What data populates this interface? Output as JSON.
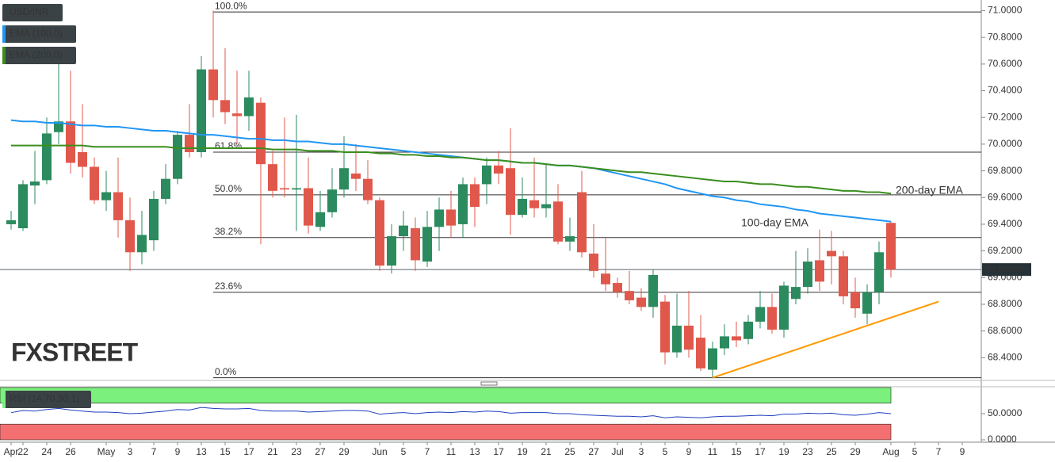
{
  "chart_data": {
    "type": "candlestick",
    "title": "USD/INR",
    "categories": [
      "Apr",
      "22",
      null,
      "24",
      null,
      "26",
      null,
      null,
      "May",
      null,
      "3",
      null,
      "7",
      null,
      "9",
      null,
      "13",
      null,
      "15",
      null,
      "17",
      null,
      "21",
      null,
      "23",
      null,
      "27",
      null,
      "29",
      null,
      null,
      "Jun",
      null,
      "5",
      null,
      "7",
      null,
      "11",
      null,
      "13",
      null,
      "17",
      null,
      "19",
      null,
      "21",
      null,
      "25",
      null,
      "27",
      null,
      "Jul",
      null,
      "3",
      null,
      "5",
      null,
      "9",
      null,
      "11",
      null,
      "15",
      null,
      "17",
      null,
      "19",
      null,
      "23",
      null,
      "25",
      null,
      "29",
      null,
      null,
      "Aug",
      null,
      "5",
      null,
      "7",
      null,
      "9"
    ],
    "open": [
      69.4,
      69.37,
      69.69,
      69.73,
      70.09,
      70.17,
      69.94,
      69.83,
      69.58,
      69.64,
      69.43,
      69.19,
      69.28,
      69.59,
      69.74,
      70.07,
      69.94,
      70.56,
      70.33,
      70.23,
      70.21,
      70.31,
      69.85,
      69.67,
      69.66,
      69.67,
      69.38,
      69.49,
      69.66,
      69.78,
      69.74,
      69.58,
      69.09,
      69.31,
      69.37,
      69.12,
      69.38,
      69.51,
      69.4,
      69.7,
      69.7,
      69.84,
      69.82,
      69.47,
      69.58,
      69.52,
      69.57,
      69.27,
      69.64,
      69.18,
      69.03,
      68.96,
      68.9,
      68.85,
      68.78,
      68.82,
      68.44,
      68.64,
      68.55,
      68.31,
      68.47,
      68.56,
      68.54,
      68.67,
      68.78,
      68.61,
      68.84,
      68.93,
      69.13,
      69.2,
      69.16,
      68.89,
      68.73,
      68.89,
      69.41,
      null,
      null,
      null,
      null,
      null,
      null
    ],
    "high": [
      69.5,
      69.73,
      69.95,
      70.2,
      70.6,
      70.55,
      70.3,
      69.9,
      69.8,
      69.9,
      69.6,
      69.5,
      69.65,
      69.85,
      70.1,
      70.3,
      70.66,
      71.0,
      70.72,
      70.55,
      70.55,
      70.35,
      69.95,
      70.2,
      70.22,
      69.9,
      69.65,
      69.82,
      70.06,
      70.0,
      69.88,
      69.6,
      69.4,
      69.5,
      69.45,
      69.5,
      69.6,
      69.65,
      69.75,
      69.75,
      69.9,
      69.95,
      70.12,
      69.75,
      69.9,
      69.85,
      69.7,
      69.45,
      69.8,
      69.4,
      69.3,
      69.0,
      69.05,
      68.92,
      69.06,
      68.87,
      68.88,
      68.9,
      68.72,
      68.52,
      68.65,
      68.67,
      68.72,
      68.9,
      68.88,
      68.97,
      69.2,
      69.22,
      69.36,
      69.35,
      69.2,
      69.0,
      68.95,
      69.27,
      69.42,
      null,
      null,
      null,
      null,
      null,
      null
    ],
    "low": [
      69.36,
      69.35,
      69.55,
      69.7,
      70.0,
      69.78,
      69.75,
      69.55,
      69.5,
      69.3,
      69.05,
      69.1,
      69.2,
      69.55,
      69.7,
      69.9,
      69.9,
      70.2,
      70.15,
      70.0,
      70.1,
      69.25,
      69.6,
      69.6,
      69.35,
      69.33,
      69.35,
      69.45,
      69.6,
      69.65,
      69.55,
      69.05,
      69.03,
      69.2,
      69.05,
      69.08,
      69.2,
      69.3,
      69.3,
      69.38,
      69.55,
      69.7,
      69.32,
      69.45,
      69.45,
      69.45,
      69.25,
      69.2,
      69.15,
      69.0,
      68.9,
      68.85,
      68.8,
      68.75,
      68.7,
      68.35,
      68.4,
      68.4,
      68.3,
      68.25,
      68.42,
      68.48,
      68.5,
      68.62,
      68.58,
      68.55,
      68.8,
      68.88,
      68.9,
      68.95,
      68.8,
      68.7,
      68.65,
      68.8,
      69.0,
      null,
      null,
      null,
      null,
      null,
      null
    ],
    "close": [
      69.43,
      69.7,
      69.72,
      70.08,
      70.17,
      69.86,
      69.83,
      69.58,
      69.64,
      69.43,
      69.19,
      69.32,
      69.59,
      69.74,
      70.07,
      69.94,
      70.56,
      70.33,
      70.24,
      70.21,
      70.35,
      69.85,
      69.65,
      69.66,
      69.67,
      69.39,
      69.49,
      69.66,
      69.82,
      69.74,
      69.58,
      69.09,
      69.31,
      69.39,
      69.13,
      69.38,
      69.51,
      69.39,
      69.7,
      69.53,
      69.84,
      69.78,
      69.47,
      69.59,
      69.52,
      69.55,
      69.27,
      69.31,
      69.19,
      69.05,
      68.95,
      68.89,
      68.83,
      68.78,
      69.02,
      68.44,
      68.64,
      68.46,
      68.32,
      68.47,
      68.56,
      68.53,
      68.67,
      68.78,
      68.61,
      68.94,
      68.93,
      69.12,
      68.97,
      69.16,
      68.86,
      68.77,
      68.89,
      69.19,
      69.06,
      null,
      null,
      null,
      null,
      null,
      null
    ],
    "up_color": "#2b8a5e",
    "down_color": "#e0584b",
    "ylim": [
      68.23,
      71.08
    ],
    "yticks": [
      {
        "value": 68.4,
        "label": "68.4000"
      },
      {
        "value": 68.6,
        "label": "68.6000"
      },
      {
        "value": 68.8,
        "label": "68.8000"
      },
      {
        "value": 69.0,
        "label": "69.0000"
      },
      {
        "value": 69.2,
        "label": "69.2000"
      },
      {
        "value": 69.4,
        "label": "69.4000"
      },
      {
        "value": 69.6,
        "label": "69.6000"
      },
      {
        "value": 69.8,
        "label": "69.8000"
      },
      {
        "value": 70.0,
        "label": "70.0000"
      },
      {
        "value": 70.2,
        "label": "70.2000"
      },
      {
        "value": 70.4,
        "label": "70.4000"
      },
      {
        "value": 70.6,
        "label": "70.6000"
      },
      {
        "value": 70.8,
        "label": "70.8000"
      },
      {
        "value": 71.0,
        "label": "71.0000"
      }
    ],
    "series": [
      {
        "name": "EMA (100,0)",
        "color": "#2196f3",
        "values": [
          70.18,
          70.17,
          70.17,
          70.16,
          70.16,
          70.15,
          70.14,
          70.14,
          70.13,
          70.13,
          70.12,
          70.11,
          70.1,
          70.1,
          70.09,
          70.08,
          70.07,
          70.07,
          70.06,
          70.05,
          70.04,
          70.04,
          70.03,
          70.03,
          70.02,
          70.02,
          70.01,
          70.0,
          70.0,
          69.99,
          69.98,
          69.97,
          69.96,
          69.95,
          69.94,
          69.93,
          69.92,
          69.91,
          69.9,
          69.89,
          69.88,
          69.88,
          69.87,
          69.86,
          69.86,
          69.85,
          69.84,
          69.84,
          69.83,
          69.82,
          69.8,
          69.78,
          69.76,
          69.74,
          69.72,
          69.7,
          69.67,
          69.65,
          69.63,
          69.61,
          69.6,
          69.58,
          69.57,
          69.55,
          69.54,
          69.53,
          69.51,
          69.5,
          69.48,
          69.47,
          69.46,
          69.45,
          69.44,
          69.43,
          69.42,
          null,
          null,
          null,
          null,
          null,
          null
        ]
      },
      {
        "name": "EMA (200,0)",
        "color": "#3a8e1e",
        "values": [
          69.99,
          69.99,
          69.99,
          69.99,
          69.99,
          69.99,
          69.99,
          69.98,
          69.98,
          69.98,
          69.98,
          69.98,
          69.98,
          69.98,
          69.97,
          69.97,
          69.97,
          69.97,
          69.97,
          69.97,
          69.97,
          69.97,
          69.96,
          69.96,
          69.96,
          69.95,
          69.95,
          69.95,
          69.94,
          69.94,
          69.94,
          69.93,
          69.93,
          69.92,
          69.92,
          69.91,
          69.91,
          69.9,
          69.9,
          69.89,
          69.88,
          69.88,
          69.87,
          69.86,
          69.86,
          69.85,
          69.84,
          69.84,
          69.83,
          69.82,
          69.81,
          69.8,
          69.79,
          69.79,
          69.78,
          69.77,
          69.76,
          69.75,
          69.74,
          69.73,
          69.72,
          69.72,
          69.71,
          69.7,
          69.7,
          69.69,
          69.68,
          69.68,
          69.67,
          69.66,
          69.65,
          69.65,
          69.64,
          69.64,
          69.63,
          null,
          null,
          null,
          null,
          null,
          null
        ]
      }
    ],
    "annotations": [
      {
        "text": "100-day EMA",
        "color": "#2196f3"
      },
      {
        "text": "200-day EMA",
        "color": "#3a8e1e"
      }
    ],
    "fib_levels": [
      {
        "label": "100.0%",
        "value": 70.99
      },
      {
        "label": "61.8%",
        "value": 69.94
      },
      {
        "label": "50.0%",
        "value": 69.62
      },
      {
        "label": "38.2%",
        "value": 69.3
      },
      {
        "label": "23.6%",
        "value": 68.89
      },
      {
        "label": "0.0%",
        "value": 68.25
      }
    ],
    "last_price": {
      "value": 69.0605,
      "label": "69.06050"
    },
    "trendline": {
      "color": "#ff9900",
      "x": [
        59,
        78
      ],
      "values": [
        68.25,
        68.82
      ]
    },
    "watermark": "FXSTREET",
    "rsi": {
      "name": "RSI (14,70,30,1)",
      "color": "#1f3fbf",
      "ylim": [
        0,
        100
      ],
      "yticks": [
        {
          "value": 50,
          "label": "50.0000"
        },
        {
          "value": 0,
          "label": "0.0000"
        }
      ],
      "bands": [
        {
          "from": 70,
          "to": 100,
          "color": "#7cf07c"
        },
        {
          "from": 0,
          "to": 30,
          "color": "#f47070"
        }
      ],
      "values": [
        52,
        56,
        55,
        58,
        60,
        57,
        55,
        53,
        53,
        52,
        50,
        51,
        53,
        55,
        58,
        57,
        62,
        60,
        59,
        59,
        60,
        56,
        55,
        55,
        55,
        53,
        54,
        55,
        56,
        56,
        55,
        49,
        51,
        52,
        50,
        52,
        53,
        52,
        54,
        53,
        55,
        54,
        51,
        52,
        52,
        52,
        50,
        50,
        48,
        47,
        46,
        45,
        45,
        44,
        46,
        42,
        44,
        43,
        42,
        44,
        45,
        45,
        46,
        47,
        46,
        49,
        49,
        51,
        50,
        51,
        48,
        47,
        49,
        52,
        50,
        null,
        null,
        null,
        null,
        null,
        null
      ]
    }
  }
}
